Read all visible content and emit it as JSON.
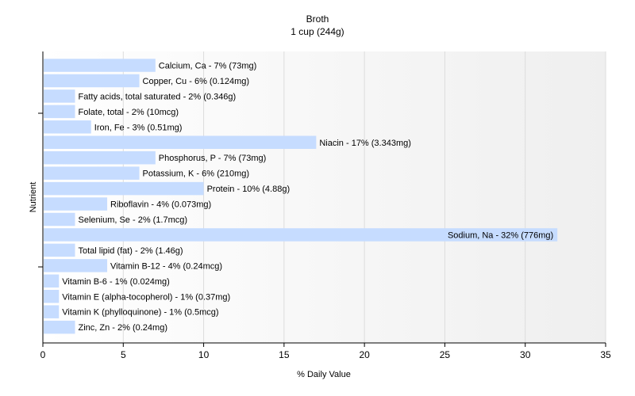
{
  "chart_data": {
    "type": "bar",
    "orientation": "horizontal",
    "title": "Broth",
    "subtitle": "1 cup (244g)",
    "xlabel": "% Daily Value",
    "ylabel": "Nutrient",
    "xlim": [
      0,
      35
    ],
    "xticks": [
      0,
      5,
      10,
      15,
      20,
      25,
      30,
      35
    ],
    "grid": true,
    "bar_color": "#c6dcff",
    "categories": [
      "Calcium, Ca",
      "Copper, Cu",
      "Fatty acids, total saturated",
      "Folate, total",
      "Iron, Fe",
      "Niacin",
      "Phosphorus, P",
      "Potassium, K",
      "Protein",
      "Riboflavin",
      "Selenium, Se",
      "Sodium, Na",
      "Total lipid (fat)",
      "Vitamin B-12",
      "Vitamin B-6",
      "Vitamin E (alpha-tocopherol)",
      "Vitamin K (phylloquinone)",
      "Zinc, Zn"
    ],
    "values": [
      7,
      6,
      2,
      2,
      3,
      17,
      7,
      6,
      10,
      4,
      2,
      32,
      2,
      4,
      1,
      1,
      1,
      2
    ],
    "labels": [
      "Calcium, Ca - 7% (73mg)",
      "Copper, Cu - 6% (0.124mg)",
      "Fatty acids, total saturated - 2% (0.346g)",
      "Folate, total - 2% (10mcg)",
      "Iron, Fe - 3% (0.51mg)",
      "Niacin - 17% (3.343mg)",
      "Phosphorus, P - 7% (73mg)",
      "Potassium, K - 6% (210mg)",
      "Protein - 10% (4.88g)",
      "Riboflavin - 4% (0.073mg)",
      "Selenium, Se - 2% (1.7mcg)",
      "Sodium, Na - 32% (776mg)",
      "Total lipid (fat) - 2% (1.46g)",
      "Vitamin B-12 - 4% (0.24mcg)",
      "Vitamin B-6 - 1% (0.024mg)",
      "Vitamin E (alpha-tocopherol) - 1% (0.37mg)",
      "Vitamin K (phylloquinone) - 1% (0.5mcg)",
      "Zinc, Zn - 2% (0.24mg)"
    ]
  }
}
